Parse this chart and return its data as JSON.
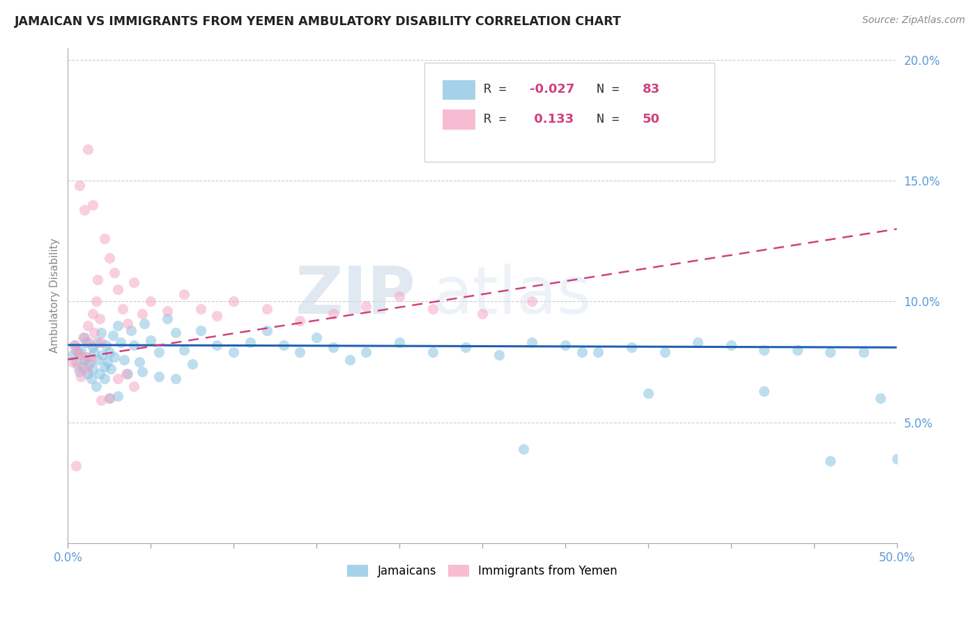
{
  "title": "JAMAICAN VS IMMIGRANTS FROM YEMEN AMBULATORY DISABILITY CORRELATION CHART",
  "source_text": "Source: ZipAtlas.com",
  "ylabel": "Ambulatory Disability",
  "xlim": [
    0.0,
    0.5
  ],
  "ylim": [
    0.0,
    0.205
  ],
  "color_jamaican": "#7fbfdf",
  "color_yemen": "#f4a0c0",
  "color_trend_jamaican": "#2060b0",
  "color_trend_yemen": "#d04080",
  "background_color": "#ffffff",
  "watermark_zip": "ZIP",
  "watermark_atlas": "atlas",
  "trend_j_y0": 0.082,
  "trend_j_y1": 0.081,
  "trend_y_y0": 0.076,
  "trend_y_y1": 0.13,
  "jamaican_x": [
    0.003,
    0.004,
    0.005,
    0.006,
    0.007,
    0.008,
    0.009,
    0.01,
    0.01,
    0.011,
    0.012,
    0.012,
    0.013,
    0.014,
    0.015,
    0.015,
    0.016,
    0.017,
    0.018,
    0.018,
    0.019,
    0.02,
    0.021,
    0.022,
    0.022,
    0.023,
    0.024,
    0.025,
    0.026,
    0.027,
    0.028,
    0.03,
    0.032,
    0.034,
    0.036,
    0.038,
    0.04,
    0.043,
    0.046,
    0.05,
    0.055,
    0.06,
    0.065,
    0.07,
    0.075,
    0.08,
    0.09,
    0.1,
    0.11,
    0.12,
    0.13,
    0.14,
    0.15,
    0.16,
    0.17,
    0.18,
    0.2,
    0.22,
    0.24,
    0.26,
    0.28,
    0.3,
    0.32,
    0.34,
    0.36,
    0.38,
    0.4,
    0.42,
    0.44,
    0.46,
    0.48,
    0.5,
    0.045,
    0.055,
    0.065,
    0.275,
    0.31,
    0.35,
    0.42,
    0.46,
    0.49,
    0.03,
    0.025
  ],
  "jamaican_y": [
    0.078,
    0.082,
    0.075,
    0.079,
    0.071,
    0.08,
    0.073,
    0.085,
    0.076,
    0.083,
    0.07,
    0.077,
    0.074,
    0.068,
    0.081,
    0.072,
    0.079,
    0.065,
    0.083,
    0.076,
    0.07,
    0.087,
    0.078,
    0.073,
    0.068,
    0.082,
    0.075,
    0.079,
    0.072,
    0.086,
    0.077,
    0.09,
    0.083,
    0.076,
    0.07,
    0.088,
    0.082,
    0.075,
    0.091,
    0.084,
    0.079,
    0.093,
    0.087,
    0.08,
    0.074,
    0.088,
    0.082,
    0.079,
    0.083,
    0.088,
    0.082,
    0.079,
    0.085,
    0.081,
    0.076,
    0.079,
    0.083,
    0.079,
    0.081,
    0.078,
    0.083,
    0.082,
    0.079,
    0.081,
    0.079,
    0.083,
    0.082,
    0.08,
    0.08,
    0.079,
    0.079,
    0.035,
    0.071,
    0.069,
    0.068,
    0.039,
    0.079,
    0.062,
    0.063,
    0.034,
    0.06,
    0.061,
    0.06
  ],
  "yemen_x": [
    0.003,
    0.004,
    0.005,
    0.006,
    0.007,
    0.008,
    0.009,
    0.01,
    0.011,
    0.012,
    0.013,
    0.014,
    0.015,
    0.016,
    0.017,
    0.018,
    0.019,
    0.02,
    0.022,
    0.025,
    0.028,
    0.03,
    0.033,
    0.036,
    0.04,
    0.045,
    0.05,
    0.06,
    0.07,
    0.08,
    0.09,
    0.1,
    0.12,
    0.14,
    0.16,
    0.18,
    0.2,
    0.22,
    0.25,
    0.28,
    0.02,
    0.025,
    0.03,
    0.035,
    0.04,
    0.01,
    0.012,
    0.015,
    0.007,
    0.005
  ],
  "yemen_y": [
    0.075,
    0.082,
    0.08,
    0.073,
    0.078,
    0.069,
    0.085,
    0.077,
    0.072,
    0.09,
    0.083,
    0.076,
    0.095,
    0.087,
    0.1,
    0.109,
    0.093,
    0.083,
    0.126,
    0.118,
    0.112,
    0.105,
    0.097,
    0.091,
    0.108,
    0.095,
    0.1,
    0.096,
    0.103,
    0.097,
    0.094,
    0.1,
    0.097,
    0.092,
    0.095,
    0.098,
    0.102,
    0.097,
    0.095,
    0.1,
    0.059,
    0.06,
    0.068,
    0.07,
    0.065,
    0.138,
    0.163,
    0.14,
    0.148,
    0.032
  ]
}
